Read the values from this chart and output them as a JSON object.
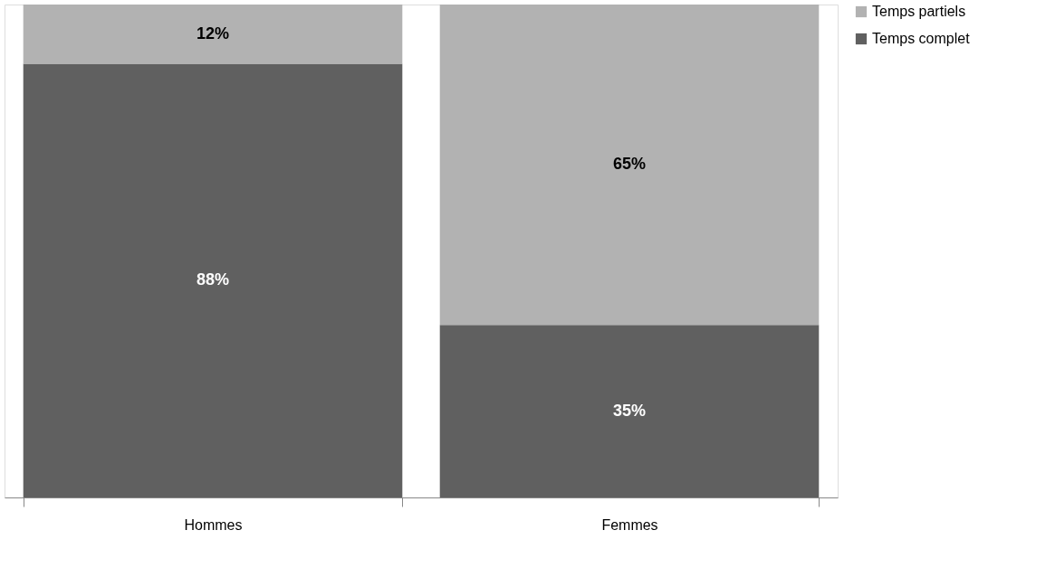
{
  "chart_data": {
    "type": "bar",
    "stacked": true,
    "categories": [
      "Hommes",
      "Femmes"
    ],
    "series": [
      {
        "name": "Temps complet",
        "color": "#606060",
        "values": [
          88,
          35
        ],
        "value_labels": [
          "88%",
          "35%"
        ]
      },
      {
        "name": "Temps partiels",
        "color": "#b2b2b2",
        "values": [
          12,
          65
        ],
        "value_labels": [
          "12%",
          "65%"
        ]
      }
    ],
    "ylim": [
      0,
      100
    ],
    "tick_labels": "x",
    "legend": "right",
    "grid": false
  }
}
